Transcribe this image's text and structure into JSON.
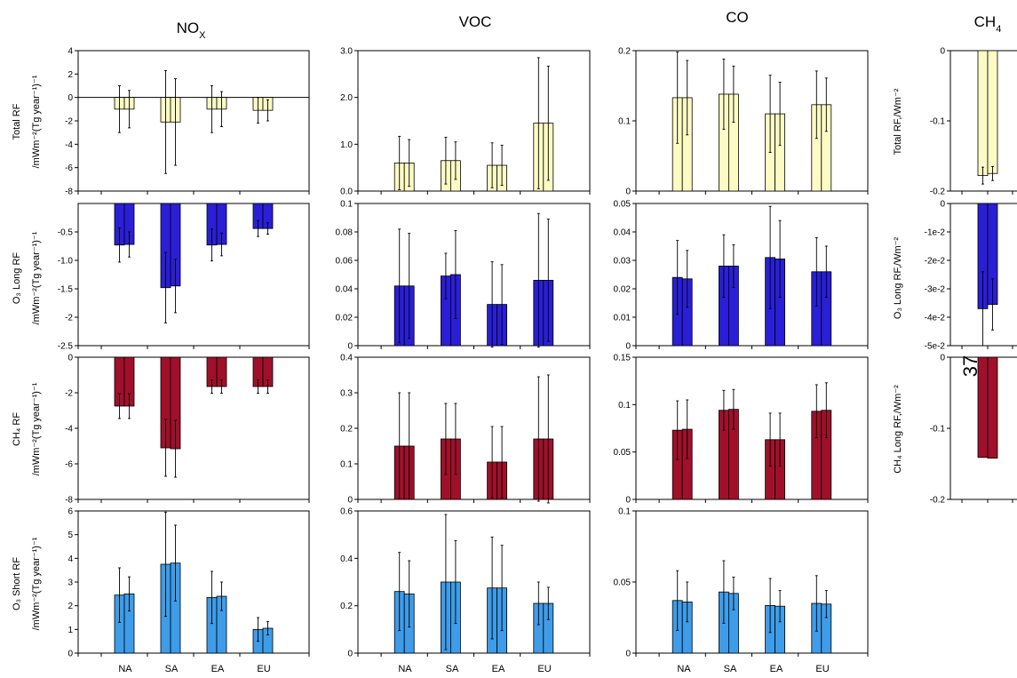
{
  "figure": {
    "page_number": "37",
    "columns": [
      {
        "title": "NO",
        "sub": "X"
      },
      {
        "title": "VOC",
        "sub": ""
      },
      {
        "title": "CO",
        "sub": ""
      },
      {
        "title": "CH",
        "sub": "4"
      }
    ],
    "rows": [
      {
        "label_main": "Total RF",
        "label_unit": "/mWm⁻²(Tg year⁻¹)⁻¹",
        "ch4_label": "Total RF,/Wm⁻²"
      },
      {
        "label_main": "O₃ Long RF",
        "label_unit": "/mWm⁻²(Tg year⁻¹)⁻¹",
        "ch4_label": "O₃ Long RF,/Wm⁻²"
      },
      {
        "label_main": "CH₄ RF",
        "label_unit": "/mWm⁻²(Tg year⁻¹)⁻¹",
        "ch4_label": "CH₄ Long RF,/Wm⁻²"
      },
      {
        "label_main": "O₃ Short RF",
        "label_unit": "/mWm⁻²(Tg year⁻¹)⁻¹",
        "ch4_label": ""
      }
    ],
    "regions": [
      "NA",
      "SA",
      "EA",
      "EU"
    ]
  },
  "colors": {
    "total": "#fdfbc4",
    "o3_long": "#2a1fd6",
    "ch4": "#a0102b",
    "o3_short": "#3f9ce8"
  },
  "chart_data": [
    {
      "type": "bar",
      "row": "Total RF",
      "column": "NOX",
      "categories": [
        "NA",
        "SA",
        "EA",
        "EU"
      ],
      "ylim": [
        -8,
        4
      ],
      "yticks": [
        "4",
        "2",
        "0",
        "-2",
        "-4",
        "-6",
        "-8"
      ],
      "zero_line": true,
      "series": [
        {
          "values": [
            -1.0,
            -2.1,
            -1.0,
            -1.1
          ],
          "errors": [
            2.0,
            4.4,
            2.0,
            1.1
          ]
        },
        {
          "values": [
            -1.0,
            -2.1,
            -1.0,
            -1.1
          ],
          "errors": [
            1.6,
            3.7,
            1.5,
            0.9
          ]
        }
      ]
    },
    {
      "type": "bar",
      "row": "Total RF",
      "column": "VOC",
      "categories": [
        "NA",
        "SA",
        "EA",
        "EU"
      ],
      "ylim": [
        0,
        3
      ],
      "yticks": [
        "3.0",
        "2.0",
        "1.0",
        "0.0"
      ],
      "series": [
        {
          "values": [
            0.6,
            0.65,
            0.55,
            1.45
          ],
          "errors": [
            0.57,
            0.5,
            0.48,
            1.4
          ]
        },
        {
          "values": [
            0.6,
            0.65,
            0.55,
            1.45
          ],
          "errors": [
            0.5,
            0.4,
            0.43,
            1.22
          ]
        }
      ]
    },
    {
      "type": "bar",
      "row": "Total RF",
      "column": "CO",
      "categories": [
        "NA",
        "SA",
        "EA",
        "EU"
      ],
      "ylim": [
        0,
        0.2
      ],
      "yticks": [
        "0.2",
        "0.1",
        "0"
      ],
      "series": [
        {
          "values": [
            0.133,
            0.138,
            0.11,
            0.123
          ],
          "errors": [
            0.065,
            0.05,
            0.055,
            0.048
          ]
        },
        {
          "values": [
            0.133,
            0.138,
            0.11,
            0.123
          ],
          "errors": [
            0.053,
            0.04,
            0.045,
            0.038
          ]
        }
      ]
    },
    {
      "type": "bar",
      "row": "Total RF",
      "column": "CH4",
      "categories": [
        "CH4"
      ],
      "ylim": [
        -0.2,
        0
      ],
      "yticks": [
        "0",
        "-0.1",
        "-0.2"
      ],
      "series": [
        {
          "values": [
            -0.178
          ],
          "errors": [
            0.012
          ]
        },
        {
          "values": [
            -0.175
          ],
          "errors": [
            0.01
          ]
        }
      ]
    },
    {
      "type": "bar",
      "row": "O3 Long RF",
      "column": "NOX",
      "categories": [
        "NA",
        "SA",
        "EA",
        "EU"
      ],
      "ylim": [
        -2.5,
        0
      ],
      "yticks": [
        "-0.5",
        "-1.0",
        "-1.5",
        "-2",
        "-2.5"
      ],
      "series": [
        {
          "values": [
            -0.73,
            -1.48,
            -0.73,
            -0.44
          ],
          "errors": [
            0.3,
            0.62,
            0.28,
            0.14
          ]
        },
        {
          "values": [
            -0.72,
            -1.45,
            -0.72,
            -0.44
          ],
          "errors": [
            0.22,
            0.47,
            0.2,
            0.1
          ]
        }
      ]
    },
    {
      "type": "bar",
      "row": "O3 Long RF",
      "column": "VOC",
      "categories": [
        "NA",
        "SA",
        "EA",
        "EU"
      ],
      "ylim": [
        0,
        0.1
      ],
      "yticks": [
        "0.1",
        "0.08",
        "0.06",
        "0.04",
        "0.02",
        "0"
      ],
      "series": [
        {
          "values": [
            0.042,
            0.049,
            0.029,
            0.046
          ],
          "errors": [
            0.04,
            0.016,
            0.03,
            0.047
          ]
        },
        {
          "values": [
            0.042,
            0.05,
            0.029,
            0.046
          ],
          "errors": [
            0.037,
            0.031,
            0.028,
            0.043
          ]
        }
      ]
    },
    {
      "type": "bar",
      "row": "O3 Long RF",
      "column": "CO",
      "categories": [
        "NA",
        "SA",
        "EA",
        "EU"
      ],
      "ylim": [
        0,
        0.05
      ],
      "yticks": [
        "0.05",
        "0.04",
        "0.03",
        "0.02",
        "0.01",
        "0"
      ],
      "series": [
        {
          "values": [
            0.024,
            0.028,
            0.031,
            0.026
          ],
          "errors": [
            0.013,
            0.011,
            0.018,
            0.012
          ]
        },
        {
          "values": [
            0.0235,
            0.028,
            0.0305,
            0.026
          ],
          "errors": [
            0.01,
            0.0075,
            0.0135,
            0.009
          ]
        }
      ]
    },
    {
      "type": "bar",
      "row": "O3 Long RF",
      "column": "CH4",
      "categories": [
        "CH4"
      ],
      "ylim": [
        -0.05,
        0
      ],
      "yticks": [
        "0",
        "-1e-2",
        "-2e-2",
        "-3e-2",
        "-4e-2",
        "-5e-2"
      ],
      "series": [
        {
          "values": [
            -0.037
          ],
          "errors": [
            0.013
          ]
        },
        {
          "values": [
            -0.0355
          ],
          "errors": [
            0.009
          ]
        }
      ]
    },
    {
      "type": "bar",
      "row": "CH4 RF",
      "column": "NOX",
      "categories": [
        "NA",
        "SA",
        "EA",
        "EU"
      ],
      "ylim": [
        -8,
        0
      ],
      "yticks": [
        "0",
        "-2",
        "-4",
        "-6",
        "-8"
      ],
      "series": [
        {
          "values": [
            -2.75,
            -5.1,
            -1.65,
            -1.65
          ],
          "errors": [
            0.7,
            1.6,
            0.38,
            0.38
          ]
        },
        {
          "values": [
            -2.75,
            -5.15,
            -1.65,
            -1.65
          ],
          "errors": [
            0.7,
            1.6,
            0.38,
            0.38
          ]
        }
      ]
    },
    {
      "type": "bar",
      "row": "CH4 RF",
      "column": "VOC",
      "categories": [
        "NA",
        "SA",
        "EA",
        "EU"
      ],
      "ylim": [
        0,
        0.4
      ],
      "yticks": [
        "0.4",
        "0.3",
        "0.2",
        "0.1",
        "0"
      ],
      "series": [
        {
          "values": [
            0.15,
            0.17,
            0.105,
            0.17
          ],
          "errors": [
            0.15,
            0.1,
            0.1,
            0.175
          ]
        },
        {
          "values": [
            0.15,
            0.17,
            0.105,
            0.17
          ],
          "errors": [
            0.15,
            0.1,
            0.1,
            0.18
          ]
        }
      ]
    },
    {
      "type": "bar",
      "row": "CH4 RF",
      "column": "CO",
      "categories": [
        "NA",
        "SA",
        "EA",
        "EU"
      ],
      "ylim": [
        0,
        0.15
      ],
      "yticks": [
        "0.15",
        "0.1",
        "0.05",
        "0"
      ],
      "series": [
        {
          "values": [
            0.073,
            0.094,
            0.063,
            0.093
          ],
          "errors": [
            0.031,
            0.021,
            0.028,
            0.028
          ]
        },
        {
          "values": [
            0.074,
            0.095,
            0.063,
            0.094
          ],
          "errors": [
            0.031,
            0.021,
            0.028,
            0.029
          ]
        }
      ]
    },
    {
      "type": "bar",
      "row": "CH4 RF",
      "column": "CH4",
      "categories": [
        "CH4"
      ],
      "ylim": [
        -0.2,
        0
      ],
      "yticks": [
        "0",
        "-0.1",
        "-0.2"
      ],
      "series": [
        {
          "values": [
            -0.141
          ],
          "errors": [
            0
          ]
        },
        {
          "values": [
            -0.142
          ],
          "errors": [
            0
          ]
        }
      ]
    },
    {
      "type": "bar",
      "row": "O3 Short RF",
      "column": "NOX",
      "categories": [
        "NA",
        "SA",
        "EA",
        "EU"
      ],
      "ylim": [
        0,
        6
      ],
      "yticks": [
        "6",
        "5",
        "4",
        "3",
        "2",
        "1",
        "0"
      ],
      "series": [
        {
          "values": [
            2.45,
            3.75,
            2.35,
            1.0
          ],
          "errors": [
            1.15,
            2.2,
            1.1,
            0.5
          ]
        },
        {
          "values": [
            2.5,
            3.8,
            2.4,
            1.05
          ],
          "errors": [
            0.72,
            1.6,
            0.6,
            0.28
          ]
        }
      ]
    },
    {
      "type": "bar",
      "row": "O3 Short RF",
      "column": "VOC",
      "categories": [
        "NA",
        "SA",
        "EA",
        "EU"
      ],
      "ylim": [
        0,
        0.6
      ],
      "yticks": [
        "0.6",
        "0.4",
        "0.2",
        "0"
      ],
      "series": [
        {
          "values": [
            0.26,
            0.3,
            0.275,
            0.21
          ],
          "errors": [
            0.165,
            0.285,
            0.215,
            0.09
          ]
        },
        {
          "values": [
            0.25,
            0.3,
            0.275,
            0.21
          ],
          "errors": [
            0.14,
            0.175,
            0.18,
            0.068
          ]
        }
      ]
    },
    {
      "type": "bar",
      "row": "O3 Short RF",
      "column": "CO",
      "categories": [
        "NA",
        "SA",
        "EA",
        "EU"
      ],
      "ylim": [
        0,
        0.1
      ],
      "yticks": [
        "0.1",
        "0.05",
        "0"
      ],
      "series": [
        {
          "values": [
            0.037,
            0.043,
            0.0335,
            0.035
          ],
          "errors": [
            0.021,
            0.022,
            0.019,
            0.0195
          ]
        },
        {
          "values": [
            0.036,
            0.042,
            0.033,
            0.0345
          ],
          "errors": [
            0.014,
            0.0115,
            0.011,
            0.0095
          ]
        }
      ]
    }
  ]
}
